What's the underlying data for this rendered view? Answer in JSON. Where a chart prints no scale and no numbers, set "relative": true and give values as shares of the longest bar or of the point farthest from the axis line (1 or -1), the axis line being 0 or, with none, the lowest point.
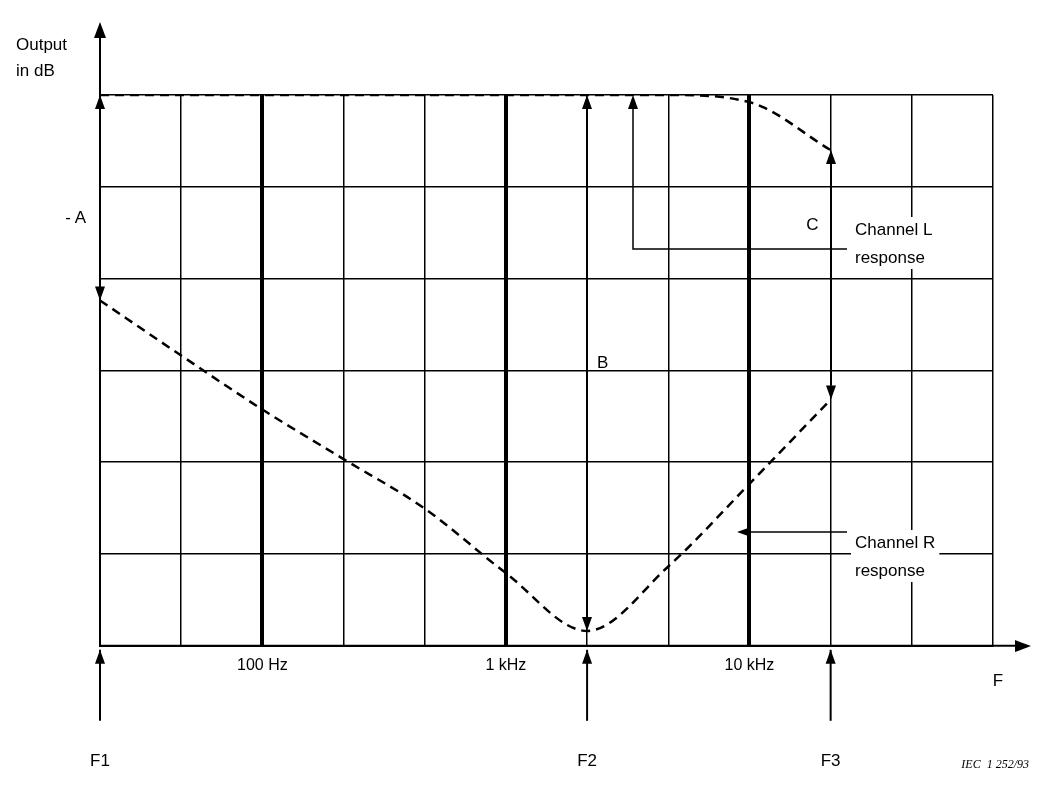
{
  "chart_data": {
    "type": "line",
    "ylabel": "Output in dB",
    "xlabel": "F",
    "relative": true,
    "grid": true,
    "legend": false,
    "marker": "none",
    "line_style": "dashed",
    "categories": [
      null,
      null,
      "100 Hz",
      null,
      null,
      "1 kHz",
      null,
      null,
      "10 kHz",
      null,
      null,
      null
    ],
    "series": [
      {
        "name": "Channel L response",
        "color": "#000000",
        "values": [
          1,
          1,
          1,
          1,
          1,
          1,
          1,
          1,
          0.987,
          0.9,
          null,
          null
        ]
      },
      {
        "name": "Channel R response",
        "color": "#000000",
        "values": [
          0.627,
          0.527,
          0.429,
          0.339,
          0.249,
          0.132,
          0.027,
          0.144,
          0.294,
          0.447,
          null,
          null
        ]
      }
    ],
    "annotations": [
      "- A",
      "B",
      "C",
      "F1",
      "F2",
      "F3",
      "IEC  1 252/93"
    ]
  }
}
